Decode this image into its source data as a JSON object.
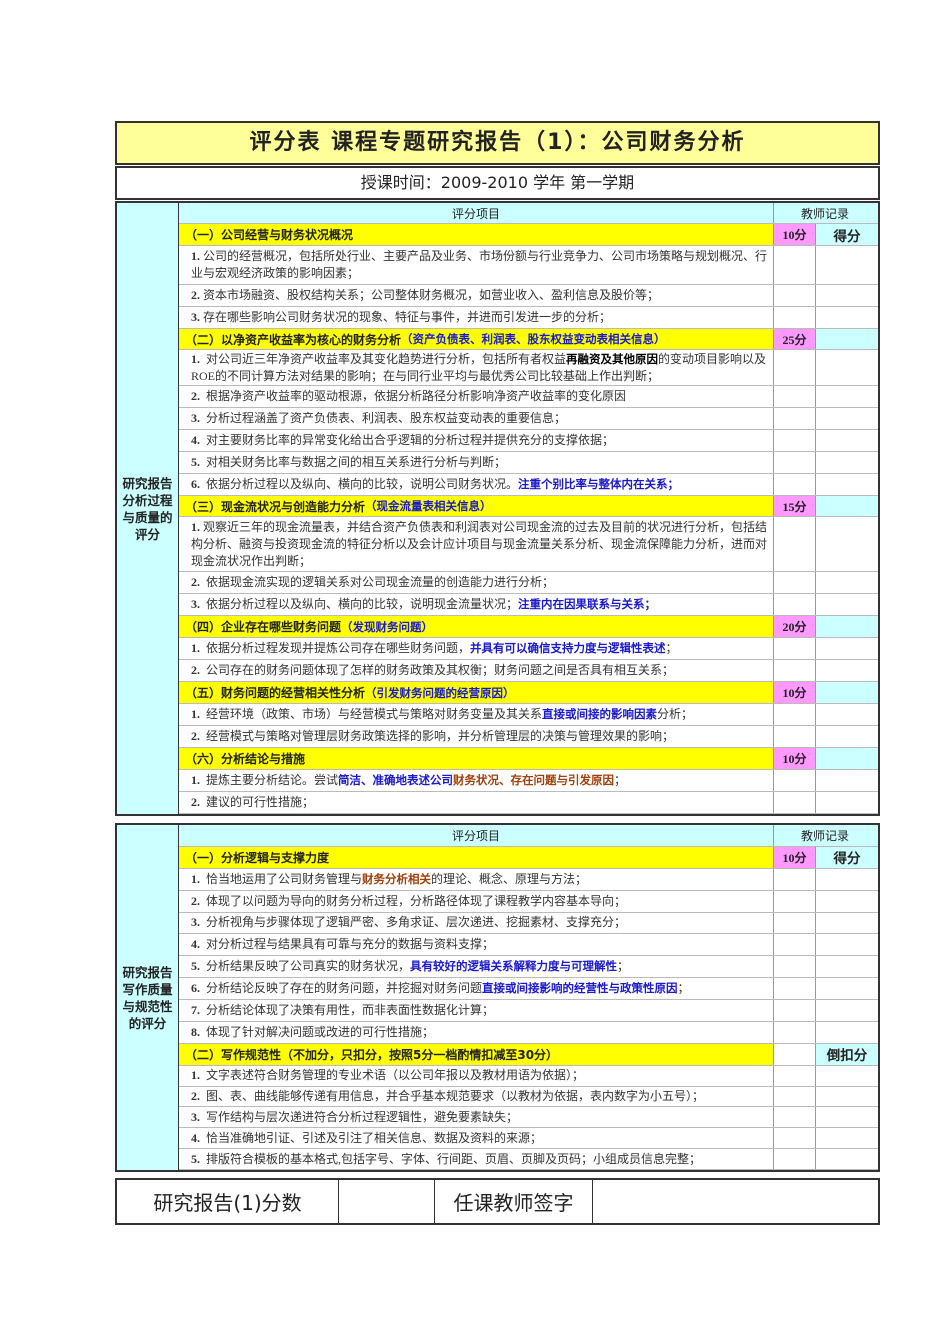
{
  "title": "评分表  课程专题研究报告（1）：公司财务分析",
  "subtitle": "授课时间：2009-2010 学年  第一学期",
  "sections": [
    {
      "side_label": "研究报告分析过程与质量的评分",
      "header": {
        "item": "评分项目",
        "record": "教师记录"
      },
      "categories": [
        {
          "title": [
            {
              "t": "（一）公司经营与财务状况概况"
            }
          ],
          "points": "10分",
          "right": "得分",
          "items": [
            {
              "num": "1.",
              "seg": [
                {
                  "t": "公司的经营概况，包括所处行业、主要产品及业务、市场份额与行业竞争力、公司市场策略与规划概况、行业与宏观经济政策的影响因素；"
                }
              ]
            },
            {
              "num": "2.",
              "seg": [
                {
                  "t": "资本市场融资、股权结构关系；公司整体财务概况，如营业收入、盈利信息及股价等；"
                }
              ]
            },
            {
              "num": "3.",
              "seg": [
                {
                  "t": "存在哪些影响公司财务状况的现象、特征与事件，并进而引发进一步的分析；"
                }
              ]
            }
          ]
        },
        {
          "title": [
            {
              "t": "（二）以净资产收益率为核心的财务分析"
            },
            {
              "t": "（资产负债表、利润表、股东权益变动表相关信息）",
              "c": "blue"
            }
          ],
          "points": "25分",
          "right": "",
          "items": [
            {
              "num": "1.",
              "seg": [
                {
                  "t": " 对公司近三年净资产收益率及其变化趋势进行分析，包括所有者权益"
                },
                {
                  "t": "再融资及其他原因",
                  "c": "bold"
                },
                {
                  "t": "的变动项目影响以及ROE的不同计算方法对结果的影响；在与同行业平均与最优秀公司比较基础上作出判断；"
                }
              ]
            },
            {
              "num": "2.",
              "seg": [
                {
                  "t": " 根据净资产收益率的驱动根源，依据分析路径分析影响净资产收益率的变化原因"
                }
              ]
            },
            {
              "num": "3.",
              "seg": [
                {
                  "t": " 分析过程涵盖了资产负债表、利润表、股东权益变动表的重要信息；"
                }
              ]
            },
            {
              "num": "4.",
              "seg": [
                {
                  "t": " 对主要财务比率的异常变化给出合乎逻辑的分析过程并提供充分的支撑依据；"
                }
              ]
            },
            {
              "num": "5.",
              "seg": [
                {
                  "t": " 对相关财务比率与数据之间的相互关系进行分析与判断；"
                }
              ]
            },
            {
              "num": "6.",
              "seg": [
                {
                  "t": " 依据分析过程以及纵向、横向的比较，说明公司财务状况。"
                },
                {
                  "t": "注重个别比率与整体内在关系；",
                  "c": "blue"
                }
              ]
            }
          ]
        },
        {
          "title": [
            {
              "t": "（三）现金流状况与创造能力分析"
            },
            {
              "t": "（现金流量表相关信息）",
              "c": "blue"
            }
          ],
          "points": "15分",
          "right": "",
          "items": [
            {
              "num": "1.",
              "seg": [
                {
                  "t": "观察近三年的现金流量表，并结合资产负债表和利润表对公司现金流的过去及目前的状况进行分析，包括结构分析、融资与投资现金流的特征分析以及会计应计项目与现金流量关系分析、现金流保障能力分析，进而对现金流状况作出判断；"
                }
              ]
            },
            {
              "num": "2.",
              "seg": [
                {
                  "t": " 依据现金流实现的逻辑关系对公司现金流量的创造能力进行分析；"
                }
              ]
            },
            {
              "num": "3.",
              "seg": [
                {
                  "t": " 依据分析过程以及纵向、横向的比较，说明现金流量状况；"
                },
                {
                  "t": "注重内在因果联系与关系；",
                  "c": "blue"
                }
              ]
            }
          ]
        },
        {
          "title": [
            {
              "t": "（四）企业存在哪些财务问题"
            },
            {
              "t": "（发现财务问题）",
              "c": "blue"
            }
          ],
          "points": "20分",
          "right": "",
          "items": [
            {
              "num": "1.",
              "seg": [
                {
                  "t": " 依据分析过程发现并提炼公司存在哪些财务问题，"
                },
                {
                  "t": "并具有可以确信支持力度与逻辑性表述",
                  "c": "blue"
                },
                {
                  "t": "；"
                }
              ]
            },
            {
              "num": "2.",
              "seg": [
                {
                  "t": " 公司存在的财务问题体现了怎样的财务政策及其权衡；财务问题之间是否具有相互关系；"
                }
              ]
            }
          ]
        },
        {
          "title": [
            {
              "t": "（五）财务问题的经营相关性分析"
            },
            {
              "t": "（引发财务问题的经营原因）",
              "c": "blue"
            }
          ],
          "points": "10分",
          "right": "",
          "items": [
            {
              "num": "1.",
              "seg": [
                {
                  "t": " 经营环境（政策、市场）与经营模式与策略对财务变量及其关系"
                },
                {
                  "t": "直接或间接的影响因素",
                  "c": "blue"
                },
                {
                  "t": "分析；"
                }
              ]
            },
            {
              "num": "2.",
              "seg": [
                {
                  "t": " 经营模式与策略对管理层财务政策选择的影响，并分析管理层的决策与管理效果的影响；"
                }
              ]
            }
          ]
        },
        {
          "title": [
            {
              "t": "（六）分析结论与措施"
            }
          ],
          "points": "10分",
          "right": "",
          "items": [
            {
              "num": "1.",
              "seg": [
                {
                  "t": " 提炼主要分析结论。尝试"
                },
                {
                  "t": "简洁、准确地表述公司",
                  "c": "blue"
                },
                {
                  "t": "财务状况、存在问题与引发原因",
                  "c": "brown"
                },
                {
                  "t": "；"
                }
              ]
            },
            {
              "num": "2.",
              "seg": [
                {
                  "t": " 建议的可行性措施；"
                }
              ]
            }
          ]
        }
      ]
    },
    {
      "side_label": "研究报告写作质量与规范性的评分",
      "header": {
        "item": "评分项目",
        "record": "教师记录"
      },
      "categories": [
        {
          "title": [
            {
              "t": "（一）分析逻辑与支撑力度"
            }
          ],
          "points": "10分",
          "right": "得分",
          "items": [
            {
              "num": "1.",
              "seg": [
                {
                  "t": " 恰当地运用了公司财务管理与"
                },
                {
                  "t": "财务分析相关",
                  "c": "brown"
                },
                {
                  "t": "的理论、概念、原理与方法；"
                }
              ]
            },
            {
              "num": "2.",
              "seg": [
                {
                  "t": " 体现了以问题为导向的财务分析过程，分析路径体现了课程教学内容基本导向；"
                }
              ]
            },
            {
              "num": "3.",
              "seg": [
                {
                  "t": " 分析视角与步骤体现了逻辑严密、多角求证、层次递进、挖掘素材、支撑充分；"
                }
              ]
            },
            {
              "num": "4.",
              "seg": [
                {
                  "t": " 对分析过程与结果具有可靠与充分的数据与资料支撑；"
                }
              ]
            },
            {
              "num": "5.",
              "seg": [
                {
                  "t": " 分析结果反映了公司真实的财务状况，"
                },
                {
                  "t": "具有较好的逻辑关系解释力度与可理解性",
                  "c": "blue"
                },
                {
                  "t": "；"
                }
              ]
            },
            {
              "num": "6.",
              "seg": [
                {
                  "t": " 分析结论反映了存在的财务问题，并挖掘对财务问题"
                },
                {
                  "t": "直接或间接影响的经营性与政策性原因",
                  "c": "blue"
                },
                {
                  "t": "；"
                }
              ]
            },
            {
              "num": "7.",
              "seg": [
                {
                  "t": " 分析结论体现了决策有用性，而非表面性数据化计算；"
                }
              ]
            },
            {
              "num": "8.",
              "seg": [
                {
                  "t": " 体现了针对解决问题或改进的可行性措施；"
                }
              ]
            }
          ]
        },
        {
          "title": [
            {
              "t": "（二）写作规范性（不加分，只扣分，按照5分一档酌情扣减至30分）"
            }
          ],
          "points": "",
          "right": "倒扣分",
          "items": [
            {
              "num": "1.",
              "seg": [
                {
                  "t": " 文字表述符合财务管理的专业术语（以公司年报以及教材用语为依据）；"
                }
              ]
            },
            {
              "num": "2.",
              "seg": [
                {
                  "t": " 图、表、曲线能够传递有用信息，并合乎基本规范要求（以教材为依据，表内数字为小五号）；"
                }
              ]
            },
            {
              "num": "3.",
              "seg": [
                {
                  "t": " 写作结构与层次递进符合分析过程逻辑性，避免要素缺失；"
                }
              ]
            },
            {
              "num": "4.",
              "seg": [
                {
                  "t": " 恰当准确地引证、引述及引注了相关信息、数据及资料的来源；"
                }
              ]
            },
            {
              "num": "5.",
              "seg": [
                {
                  "t": " 排版符合模板的基本格式,包括字号、字体、行间距、页眉、页脚及页码；小组成员信息完整；"
                }
              ]
            }
          ]
        }
      ]
    }
  ],
  "footer": {
    "score_label": "研究报告(1)分数",
    "score_value": "",
    "teacher_label": "任课教师签字",
    "teacher_value": ""
  }
}
